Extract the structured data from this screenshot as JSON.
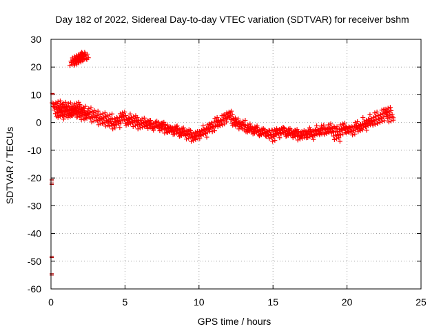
{
  "chart_data": {
    "type": "scatter",
    "title": "Day 182 of 2022, Sidereal Day-to-day VTEC variation (SDTVAR) for receiver bshm",
    "xlabel": "GPS time / hours",
    "ylabel": "SDTVAR / TECUs",
    "xlim": [
      0,
      25
    ],
    "ylim": [
      -60,
      30
    ],
    "xticks": [
      "0",
      "5",
      "10",
      "15",
      "20",
      "25"
    ],
    "yticks": [
      "30",
      "20",
      "10",
      "0",
      "-10",
      "-20",
      "-30",
      "-40",
      "-50",
      "-60"
    ],
    "grid": true,
    "marker": "plus",
    "marker_color": "#ff0000",
    "series": [
      {
        "name": "SDTVAR",
        "points": [
          [
            0.1,
            10.5
          ],
          [
            0.05,
            -20.5
          ],
          [
            0.05,
            -21.8
          ],
          [
            0.05,
            -48.2
          ],
          [
            0.05,
            -54.5
          ],
          [
            0.3,
            4.5
          ],
          [
            0.4,
            6.5
          ],
          [
            0.5,
            5.5
          ],
          [
            0.6,
            3.5
          ],
          [
            0.7,
            2.5
          ],
          [
            0.8,
            4.8
          ],
          [
            0.9,
            6.0
          ],
          [
            1.0,
            5.2
          ],
          [
            1.1,
            3.0
          ],
          [
            1.2,
            4.5
          ],
          [
            1.3,
            2.8
          ],
          [
            1.4,
            5.8
          ],
          [
            1.5,
            4.0
          ],
          [
            1.6,
            3.2
          ],
          [
            1.7,
            5.0
          ],
          [
            1.8,
            6.0
          ],
          [
            1.9,
            4.2
          ],
          [
            2.0,
            3.0
          ],
          [
            2.1,
            5.2
          ],
          [
            2.2,
            2.0
          ],
          [
            2.3,
            3.8
          ],
          [
            2.5,
            2.5
          ],
          [
            2.7,
            4.0
          ],
          [
            2.9,
            1.5
          ],
          [
            3.1,
            2.8
          ],
          [
            3.3,
            0.5
          ],
          [
            3.5,
            2.2
          ],
          [
            3.7,
            0.0
          ],
          [
            3.9,
            1.8
          ],
          [
            4.1,
            -1.0
          ],
          [
            4.3,
            0.8
          ],
          [
            4.5,
            -0.5
          ],
          [
            4.7,
            1.5
          ],
          [
            4.9,
            2.5
          ],
          [
            5.1,
            1.0
          ],
          [
            5.3,
            0.0
          ],
          [
            5.5,
            1.8
          ],
          [
            5.7,
            -0.5
          ],
          [
            5.9,
            0.5
          ],
          [
            6.1,
            -1.0
          ],
          [
            6.3,
            0.3
          ],
          [
            6.5,
            -0.2
          ],
          [
            6.7,
            -1.5
          ],
          [
            6.9,
            -0.5
          ],
          [
            7.1,
            -1.2
          ],
          [
            7.3,
            -0.8
          ],
          [
            7.5,
            -2.0
          ],
          [
            7.7,
            -1.2
          ],
          [
            7.9,
            -2.5
          ],
          [
            8.1,
            -3.0
          ],
          [
            8.3,
            -2.2
          ],
          [
            8.5,
            -3.5
          ],
          [
            8.7,
            -2.8
          ],
          [
            8.9,
            -4.0
          ],
          [
            9.1,
            -3.2
          ],
          [
            9.3,
            -5.0
          ],
          [
            9.5,
            -4.2
          ],
          [
            9.7,
            -5.5
          ],
          [
            9.9,
            -4.5
          ],
          [
            10.1,
            -3.5
          ],
          [
            10.3,
            -4.0
          ],
          [
            10.5,
            -2.5
          ],
          [
            10.7,
            -1.5
          ],
          [
            10.9,
            -2.0
          ],
          [
            11.1,
            -0.5
          ],
          [
            11.3,
            0.5
          ],
          [
            11.5,
            -0.2
          ],
          [
            11.7,
            1.5
          ],
          [
            11.9,
            2.5
          ],
          [
            12.1,
            2.8
          ],
          [
            12.3,
            1.0
          ],
          [
            12.5,
            0.0
          ],
          [
            12.7,
            -1.0
          ],
          [
            12.9,
            -0.5
          ],
          [
            13.1,
            -2.0
          ],
          [
            13.3,
            -1.5
          ],
          [
            13.5,
            -2.8
          ],
          [
            13.7,
            -2.2
          ],
          [
            13.9,
            -3.2
          ],
          [
            14.1,
            -3.0
          ],
          [
            14.3,
            -3.8
          ],
          [
            14.5,
            -3.5
          ],
          [
            14.7,
            -4.0
          ],
          [
            14.9,
            -5.5
          ],
          [
            15.1,
            -3.2
          ],
          [
            15.3,
            -4.2
          ],
          [
            15.5,
            -2.8
          ],
          [
            15.7,
            -3.5
          ],
          [
            15.9,
            -3.0
          ],
          [
            16.1,
            -4.0
          ],
          [
            16.3,
            -3.5
          ],
          [
            16.5,
            -4.5
          ],
          [
            16.7,
            -3.8
          ],
          [
            16.9,
            -5.0
          ],
          [
            17.1,
            -4.2
          ],
          [
            17.3,
            -3.5
          ],
          [
            17.5,
            -4.8
          ],
          [
            17.7,
            -3.2
          ],
          [
            17.9,
            -4.0
          ],
          [
            18.1,
            -2.5
          ],
          [
            18.3,
            -3.5
          ],
          [
            18.5,
            -2.2
          ],
          [
            18.7,
            -3.0
          ],
          [
            18.9,
            -1.8
          ],
          [
            19.1,
            -2.5
          ],
          [
            19.3,
            -5.5
          ],
          [
            19.5,
            -3.5
          ],
          [
            19.7,
            -1.5
          ],
          [
            19.9,
            -2.2
          ],
          [
            20.1,
            -2.8
          ],
          [
            20.3,
            -3.2
          ],
          [
            20.5,
            -2.0
          ],
          [
            20.7,
            -1.0
          ],
          [
            20.9,
            -2.0
          ],
          [
            21.1,
            -1.5
          ],
          [
            21.3,
            0.5
          ],
          [
            21.5,
            -0.5
          ],
          [
            21.7,
            1.5
          ],
          [
            21.9,
            0.0
          ],
          [
            22.1,
            2.5
          ],
          [
            22.3,
            1.0
          ],
          [
            22.5,
            3.5
          ],
          [
            22.7,
            4.5
          ],
          [
            22.9,
            3.0
          ],
          [
            22.9,
            1.5
          ],
          [
            1.5,
            21.5
          ],
          [
            1.6,
            22.0
          ],
          [
            1.7,
            22.2
          ],
          [
            1.8,
            22.8
          ],
          [
            1.9,
            23.2
          ],
          [
            2.0,
            23.5
          ],
          [
            2.1,
            23.8
          ],
          [
            2.2,
            24.0
          ],
          [
            2.3,
            24.0
          ]
        ]
      }
    ]
  }
}
